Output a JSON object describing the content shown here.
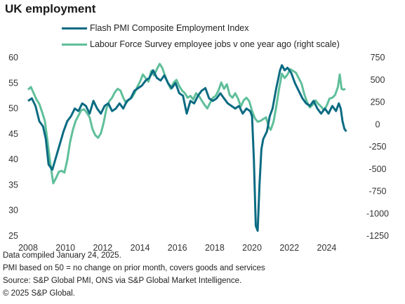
{
  "title": "UK employment",
  "colors": {
    "pmi": "#0b6b82",
    "lfs": "#5fbf9a"
  },
  "footer": {
    "line1": "Data compiled January 24, 2025.",
    "line2": "PMI based on 50 = no change on prior month, covers goods and services",
    "line3": "Source: S&P Global PMI, ONS via S&P Global Market Intelligence.",
    "line4": "© 2025 S&P Global."
  },
  "chart_data": {
    "type": "line",
    "title": "UK employment",
    "legend_position": "top",
    "grid": false,
    "x_ticks": [
      "2008",
      "2010",
      "2012",
      "2014",
      "2016",
      "2018",
      "2020",
      "2022",
      "2024"
    ],
    "xlim": [
      2008,
      2025.3
    ],
    "y_left": {
      "lim": [
        25,
        60
      ],
      "ticks": [
        "60",
        "55",
        "50",
        "45",
        "40",
        "35",
        "30",
        "25"
      ]
    },
    "y_right": {
      "lim": [
        -1250,
        750
      ],
      "ticks": [
        "750",
        "500",
        "250",
        "0",
        "-250",
        "-500",
        "-750",
        "-1000",
        "-1250"
      ]
    },
    "series": [
      {
        "name": "Flash PMI Composite Employment Index",
        "axis": "left",
        "points": [
          [
            2008.0,
            51.5
          ],
          [
            2008.2,
            52.0
          ],
          [
            2008.4,
            50.5
          ],
          [
            2008.6,
            47.5
          ],
          [
            2008.8,
            46.5
          ],
          [
            2008.95,
            44.0
          ],
          [
            2009.1,
            39.0
          ],
          [
            2009.3,
            38.0
          ],
          [
            2009.5,
            40.5
          ],
          [
            2009.7,
            43.0
          ],
          [
            2009.9,
            45.5
          ],
          [
            2010.1,
            47.5
          ],
          [
            2010.3,
            48.5
          ],
          [
            2010.5,
            50.0
          ],
          [
            2010.7,
            49.5
          ],
          [
            2010.9,
            51.0
          ],
          [
            2011.1,
            50.5
          ],
          [
            2011.3,
            49.0
          ],
          [
            2011.5,
            51.5
          ],
          [
            2011.7,
            50.0
          ],
          [
            2011.9,
            49.0
          ],
          [
            2012.1,
            50.5
          ],
          [
            2012.3,
            51.0
          ],
          [
            2012.5,
            49.5
          ],
          [
            2012.7,
            50.0
          ],
          [
            2012.9,
            51.0
          ],
          [
            2013.1,
            50.0
          ],
          [
            2013.3,
            51.5
          ],
          [
            2013.5,
            52.0
          ],
          [
            2013.7,
            53.5
          ],
          [
            2013.9,
            54.0
          ],
          [
            2014.1,
            54.5
          ],
          [
            2014.3,
            55.5
          ],
          [
            2014.5,
            56.0
          ],
          [
            2014.7,
            57.5
          ],
          [
            2014.9,
            56.0
          ],
          [
            2015.1,
            55.5
          ],
          [
            2015.3,
            56.5
          ],
          [
            2015.5,
            55.0
          ],
          [
            2015.7,
            54.0
          ],
          [
            2015.9,
            55.0
          ],
          [
            2016.1,
            53.0
          ],
          [
            2016.3,
            52.5
          ],
          [
            2016.5,
            49.0
          ],
          [
            2016.7,
            51.5
          ],
          [
            2016.9,
            51.0
          ],
          [
            2017.1,
            52.5
          ],
          [
            2017.3,
            53.5
          ],
          [
            2017.5,
            54.0
          ],
          [
            2017.7,
            52.0
          ],
          [
            2017.9,
            51.5
          ],
          [
            2018.1,
            52.0
          ],
          [
            2018.3,
            53.0
          ],
          [
            2018.5,
            52.0
          ],
          [
            2018.7,
            51.0
          ],
          [
            2018.9,
            50.5
          ],
          [
            2019.1,
            50.0
          ],
          [
            2019.3,
            50.5
          ],
          [
            2019.5,
            49.0
          ],
          [
            2019.7,
            50.0
          ],
          [
            2019.9,
            49.5
          ],
          [
            2020.0,
            48.5
          ],
          [
            2020.1,
            40.0
          ],
          [
            2020.2,
            27.0
          ],
          [
            2020.3,
            26.0
          ],
          [
            2020.4,
            35.0
          ],
          [
            2020.5,
            42.0
          ],
          [
            2020.6,
            44.0
          ],
          [
            2020.8,
            45.5
          ],
          [
            2020.95,
            48.5
          ],
          [
            2021.1,
            50.0
          ],
          [
            2021.3,
            54.0
          ],
          [
            2021.5,
            57.5
          ],
          [
            2021.6,
            58.5
          ],
          [
            2021.75,
            57.5
          ],
          [
            2021.9,
            58.0
          ],
          [
            2022.1,
            57.0
          ],
          [
            2022.3,
            55.0
          ],
          [
            2022.5,
            53.5
          ],
          [
            2022.7,
            52.0
          ],
          [
            2022.9,
            51.0
          ],
          [
            2023.1,
            50.5
          ],
          [
            2023.3,
            51.5
          ],
          [
            2023.5,
            50.0
          ],
          [
            2023.7,
            49.0
          ],
          [
            2023.9,
            50.0
          ],
          [
            2024.1,
            49.0
          ],
          [
            2024.3,
            50.5
          ],
          [
            2024.5,
            49.5
          ],
          [
            2024.65,
            51.0
          ],
          [
            2024.75,
            50.0
          ],
          [
            2024.85,
            47.5
          ],
          [
            2024.95,
            46.0
          ],
          [
            2025.05,
            45.5
          ]
        ]
      },
      {
        "name": "Labour Force Survey employee jobs v one year ago (right scale)",
        "axis": "right",
        "points": [
          [
            2008.0,
            390
          ],
          [
            2008.15,
            420
          ],
          [
            2008.3,
            350
          ],
          [
            2008.45,
            280
          ],
          [
            2008.6,
            230
          ],
          [
            2008.75,
            140
          ],
          [
            2008.9,
            40
          ],
          [
            2009.05,
            -200
          ],
          [
            2009.2,
            -450
          ],
          [
            2009.35,
            -660
          ],
          [
            2009.5,
            -600
          ],
          [
            2009.65,
            -530
          ],
          [
            2009.8,
            -520
          ],
          [
            2009.95,
            -540
          ],
          [
            2010.1,
            -400
          ],
          [
            2010.25,
            -200
          ],
          [
            2010.4,
            -60
          ],
          [
            2010.55,
            40
          ],
          [
            2010.7,
            100
          ],
          [
            2010.85,
            160
          ],
          [
            2011.0,
            170
          ],
          [
            2011.15,
            130
          ],
          [
            2011.3,
            80
          ],
          [
            2011.45,
            -50
          ],
          [
            2011.6,
            -120
          ],
          [
            2011.75,
            -150
          ],
          [
            2011.9,
            -100
          ],
          [
            2012.05,
            20
          ],
          [
            2012.2,
            180
          ],
          [
            2012.35,
            260
          ],
          [
            2012.5,
            300
          ],
          [
            2012.65,
            360
          ],
          [
            2012.8,
            400
          ],
          [
            2012.95,
            380
          ],
          [
            2013.1,
            300
          ],
          [
            2013.25,
            240
          ],
          [
            2013.4,
            280
          ],
          [
            2013.55,
            300
          ],
          [
            2013.7,
            350
          ],
          [
            2013.85,
            420
          ],
          [
            2014.0,
            480
          ],
          [
            2014.15,
            560
          ],
          [
            2014.3,
            520
          ],
          [
            2014.45,
            480
          ],
          [
            2014.6,
            600
          ],
          [
            2014.75,
            550
          ],
          [
            2014.9,
            620
          ],
          [
            2015.05,
            680
          ],
          [
            2015.2,
            630
          ],
          [
            2015.35,
            540
          ],
          [
            2015.5,
            460
          ],
          [
            2015.65,
            400
          ],
          [
            2015.8,
            470
          ],
          [
            2015.95,
            500
          ],
          [
            2016.1,
            430
          ],
          [
            2016.25,
            380
          ],
          [
            2016.4,
            350
          ],
          [
            2016.55,
            300
          ],
          [
            2016.7,
            320
          ],
          [
            2016.85,
            280
          ],
          [
            2017.0,
            350
          ],
          [
            2017.15,
            320
          ],
          [
            2017.3,
            270
          ],
          [
            2017.45,
            220
          ],
          [
            2017.6,
            180
          ],
          [
            2017.75,
            240
          ],
          [
            2017.9,
            300
          ],
          [
            2018.05,
            320
          ],
          [
            2018.2,
            380
          ],
          [
            2018.35,
            470
          ],
          [
            2018.5,
            400
          ],
          [
            2018.65,
            450
          ],
          [
            2018.8,
            330
          ],
          [
            2018.95,
            300
          ],
          [
            2019.1,
            350
          ],
          [
            2019.25,
            290
          ],
          [
            2019.4,
            200
          ],
          [
            2019.55,
            270
          ],
          [
            2019.7,
            300
          ],
          [
            2019.85,
            260
          ],
          [
            2020.0,
            150
          ],
          [
            2020.15,
            70
          ],
          [
            2020.3,
            30
          ],
          [
            2020.45,
            40
          ],
          [
            2020.6,
            60
          ],
          [
            2020.75,
            80
          ],
          [
            2020.9,
            -30
          ],
          [
            2021.0,
            -60
          ],
          [
            2021.15,
            30
          ],
          [
            2021.3,
            200
          ],
          [
            2021.45,
            400
          ],
          [
            2021.6,
            570
          ],
          [
            2021.75,
            520
          ],
          [
            2021.9,
            560
          ],
          [
            2022.05,
            620
          ],
          [
            2022.2,
            600
          ],
          [
            2022.35,
            580
          ],
          [
            2022.5,
            520
          ],
          [
            2022.65,
            460
          ],
          [
            2022.8,
            340
          ],
          [
            2022.95,
            250
          ],
          [
            2023.1,
            190
          ],
          [
            2023.25,
            220
          ],
          [
            2023.4,
            270
          ],
          [
            2023.55,
            230
          ],
          [
            2023.7,
            200
          ],
          [
            2023.85,
            160
          ],
          [
            2024.0,
            210
          ],
          [
            2024.15,
            290
          ],
          [
            2024.3,
            300
          ],
          [
            2024.45,
            330
          ],
          [
            2024.6,
            420
          ],
          [
            2024.7,
            560
          ],
          [
            2024.8,
            400
          ],
          [
            2024.9,
            390
          ],
          [
            2025.0,
            400
          ]
        ]
      }
    ]
  }
}
